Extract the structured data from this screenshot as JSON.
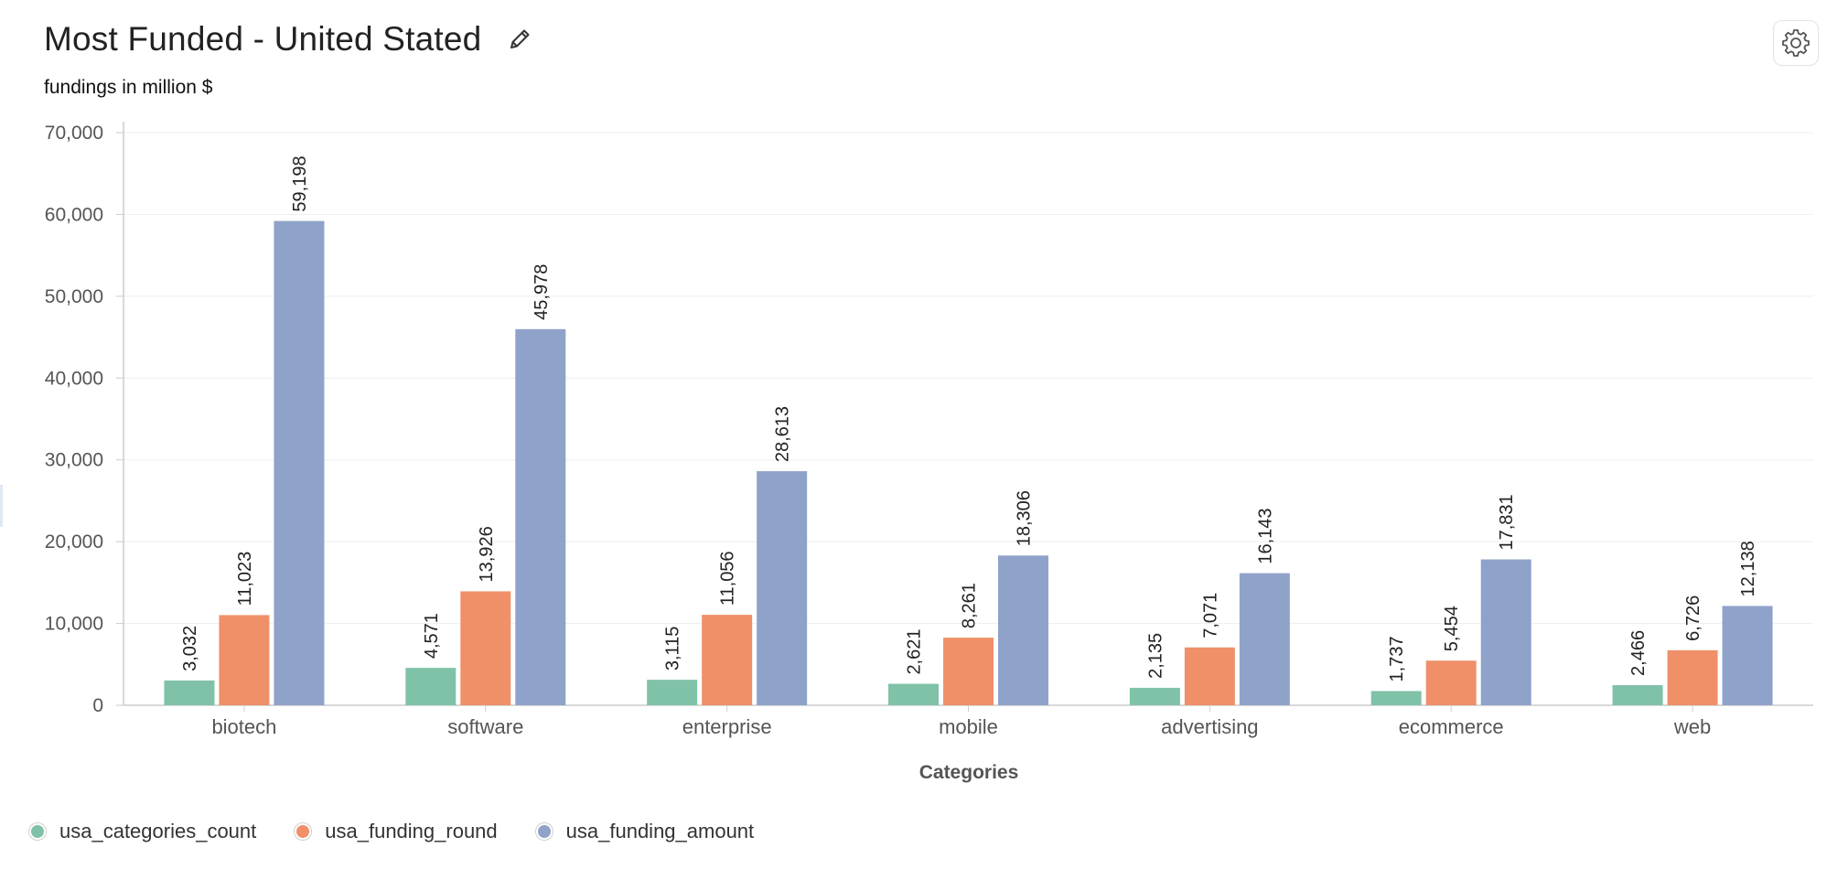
{
  "header": {
    "title": "Most Funded - United Stated",
    "subtitle": "fundings in million $"
  },
  "icons": {
    "edit": "pencil-icon",
    "settings": "gear-icon"
  },
  "colors": {
    "usa_categories_count": "#7fc2a8",
    "usa_funding_round": "#ef9069",
    "usa_funding_amount": "#8fa2c9",
    "axis_text": "#555555",
    "grid": "#eeeeee"
  },
  "chart_data": {
    "type": "bar",
    "xlabel": "Categories",
    "ylabel": "",
    "ylim": [
      0,
      70000
    ],
    "yticks": [
      0,
      10000,
      20000,
      30000,
      40000,
      50000,
      60000,
      70000
    ],
    "ytick_labels": [
      "0",
      "10,000",
      "20,000",
      "30,000",
      "40,000",
      "50,000",
      "60,000",
      "70,000"
    ],
    "grid": true,
    "legend_position": "bottom-left",
    "categories": [
      "biotech",
      "software",
      "enterprise",
      "mobile",
      "advertising",
      "ecommerce",
      "web"
    ],
    "series": [
      {
        "name": "usa_categories_count",
        "color": "#7fc2a8",
        "values": [
          3032,
          4571,
          3115,
          2621,
          2135,
          1737,
          2466
        ],
        "labels": [
          "3,032",
          "4,571",
          "3,115",
          "2,621",
          "2,135",
          "1,737",
          "2,466"
        ]
      },
      {
        "name": "usa_funding_round",
        "color": "#ef9069",
        "values": [
          11023,
          13926,
          11056,
          8261,
          7071,
          5454,
          6726
        ],
        "labels": [
          "11,023",
          "13,926",
          "11,056",
          "8,261",
          "7,071",
          "5,454",
          "6,726"
        ]
      },
      {
        "name": "usa_funding_amount",
        "color": "#8fa2c9",
        "values": [
          59198,
          45978,
          28613,
          18306,
          16143,
          17831,
          12138
        ],
        "labels": [
          "59,198",
          "45,978",
          "28,613",
          "18,306",
          "16,143",
          "17,831",
          "12,138"
        ]
      }
    ]
  }
}
